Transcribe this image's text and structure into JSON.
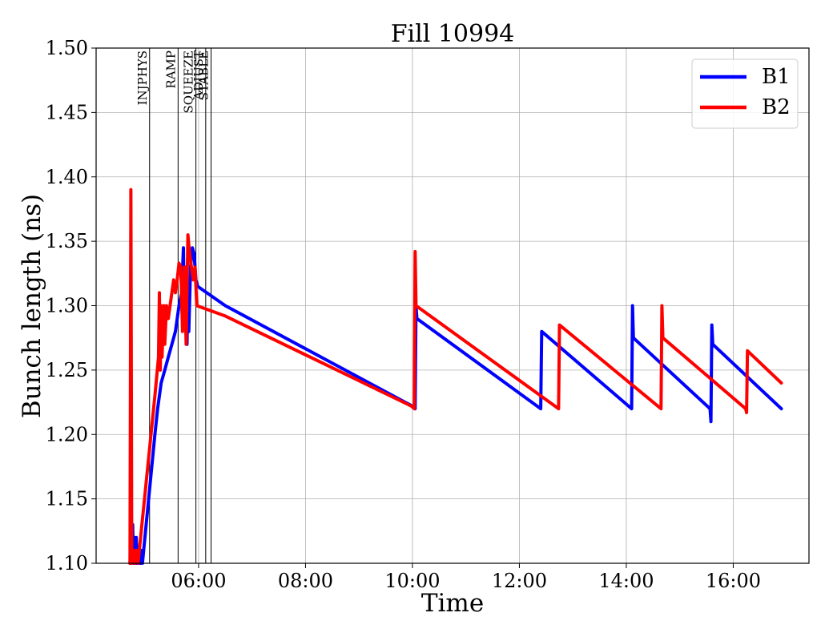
{
  "chart_data": {
    "type": "line",
    "title": "Fill 10994",
    "xlabel": "Time",
    "ylabel": "Bunch length (ns)",
    "xlim": [
      "04:05",
      "17:25"
    ],
    "ylim": [
      1.1,
      1.5
    ],
    "yticks": [
      1.1,
      1.15,
      1.2,
      1.25,
      1.3,
      1.35,
      1.4,
      1.45,
      1.5
    ],
    "ytick_labels": [
      "1.10",
      "1.15",
      "1.20",
      "1.25",
      "1.30",
      "1.35",
      "1.40",
      "1.45",
      "1.50"
    ],
    "xticks": [
      "06:00",
      "08:00",
      "10:00",
      "12:00",
      "14:00",
      "16:00"
    ],
    "grid": true,
    "legend_position": "top-right",
    "phases": [
      {
        "label": "INJPHYS",
        "time": "05:05"
      },
      {
        "label": "RAMP",
        "time": "05:37"
      },
      {
        "label": "SQUEEZE",
        "time": "05:57"
      },
      {
        "label": "ADJUST",
        "time": "06:08"
      },
      {
        "label": "STABLE",
        "time": "06:14"
      }
    ],
    "series": [
      {
        "name": "B1",
        "color": "#0000ff",
        "points": [
          [
            "04:43",
            1.1
          ],
          [
            "04:44",
            1.12
          ],
          [
            "04:45",
            1.1
          ],
          [
            "04:46",
            1.13
          ],
          [
            "04:47",
            1.1
          ],
          [
            "04:48",
            1.12
          ],
          [
            "04:49",
            1.1
          ],
          [
            "04:50",
            1.12
          ],
          [
            "04:51",
            1.1
          ],
          [
            "04:52",
            1.11
          ],
          [
            "04:53",
            1.1
          ],
          [
            "04:54",
            1.11
          ],
          [
            "04:55",
            1.1
          ],
          [
            "04:56",
            1.11
          ],
          [
            "04:57",
            1.1
          ],
          [
            "05:11",
            1.2
          ],
          [
            "05:14",
            1.22
          ],
          [
            "05:18",
            1.24
          ],
          [
            "05:22",
            1.25
          ],
          [
            "05:26",
            1.26
          ],
          [
            "05:30",
            1.27
          ],
          [
            "05:34",
            1.28
          ],
          [
            "05:38",
            1.3
          ],
          [
            "05:41",
            1.31
          ],
          [
            "05:43",
            1.345
          ],
          [
            "05:44",
            1.29
          ],
          [
            "05:46",
            1.33
          ],
          [
            "05:47",
            1.27
          ],
          [
            "05:48",
            1.32
          ],
          [
            "05:49",
            1.28
          ],
          [
            "05:51",
            1.33
          ],
          [
            "05:53",
            1.345
          ],
          [
            "05:55",
            1.34
          ],
          [
            "05:57",
            1.32
          ],
          [
            "05:59",
            1.315
          ],
          [
            "06:30",
            1.3
          ],
          [
            "10:00",
            1.222
          ],
          [
            "10:03",
            1.22
          ],
          [
            "10:04",
            1.3
          ],
          [
            "10:05",
            1.29
          ],
          [
            "12:24",
            1.22
          ],
          [
            "12:25",
            1.28
          ],
          [
            "14:06",
            1.22
          ],
          [
            "14:07",
            1.3
          ],
          [
            "14:08",
            1.275
          ],
          [
            "15:34",
            1.22
          ],
          [
            "15:35",
            1.21
          ],
          [
            "15:36",
            1.285
          ],
          [
            "15:37",
            1.27
          ],
          [
            "16:54",
            1.22
          ]
        ]
      },
      {
        "name": "B2",
        "color": "#ff0000",
        "points": [
          [
            "04:43",
            1.1
          ],
          [
            "04:44",
            1.39
          ],
          [
            "04:45",
            1.1
          ],
          [
            "04:47",
            1.11
          ],
          [
            "04:48",
            1.1
          ],
          [
            "04:50",
            1.11
          ],
          [
            "04:52",
            1.1
          ],
          [
            "05:11",
            1.23
          ],
          [
            "05:15",
            1.26
          ],
          [
            "05:16",
            1.31
          ],
          [
            "05:17",
            1.25
          ],
          [
            "05:18",
            1.3
          ],
          [
            "05:19",
            1.26
          ],
          [
            "05:21",
            1.3
          ],
          [
            "05:22",
            1.27
          ],
          [
            "05:24",
            1.3
          ],
          [
            "05:26",
            1.29
          ],
          [
            "05:28",
            1.3
          ],
          [
            "05:30",
            1.31
          ],
          [
            "05:32",
            1.32
          ],
          [
            "05:34",
            1.31
          ],
          [
            "05:36",
            1.32
          ],
          [
            "05:38",
            1.333
          ],
          [
            "05:40",
            1.33
          ],
          [
            "05:42",
            1.28
          ],
          [
            "05:44",
            1.33
          ],
          [
            "05:46",
            1.27
          ],
          [
            "05:48",
            1.355
          ],
          [
            "05:50",
            1.34
          ],
          [
            "05:52",
            1.33
          ],
          [
            "05:54",
            1.32
          ],
          [
            "05:56",
            1.33
          ],
          [
            "05:58",
            1.3
          ],
          [
            "06:30",
            1.292
          ],
          [
            "09:59",
            1.222
          ],
          [
            "10:02",
            1.22
          ],
          [
            "10:03",
            1.342
          ],
          [
            "10:04",
            1.3
          ],
          [
            "12:44",
            1.22
          ],
          [
            "12:45",
            1.285
          ],
          [
            "14:39",
            1.22
          ],
          [
            "14:40",
            1.3
          ],
          [
            "14:41",
            1.275
          ],
          [
            "16:14",
            1.22
          ],
          [
            "16:15",
            1.217
          ],
          [
            "16:16",
            1.265
          ],
          [
            "16:54",
            1.24
          ]
        ]
      }
    ]
  }
}
